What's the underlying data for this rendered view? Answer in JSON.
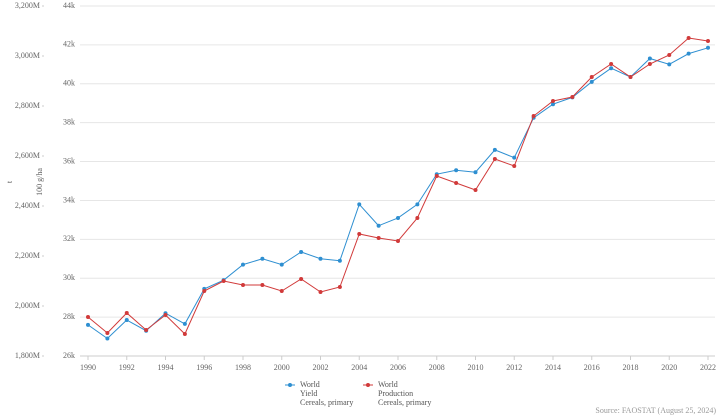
{
  "chart_data": {
    "type": "line",
    "x": [
      1990,
      1991,
      1992,
      1993,
      1994,
      1995,
      1996,
      1997,
      1998,
      1999,
      2000,
      2001,
      2002,
      2003,
      2004,
      2005,
      2006,
      2007,
      2008,
      2009,
      2010,
      2011,
      2012,
      2013,
      2014,
      2015,
      2016,
      2017,
      2018,
      2019,
      2020,
      2021,
      2022
    ],
    "xlim": [
      1990,
      2022
    ],
    "xticks": [
      1990,
      1992,
      1994,
      1996,
      1998,
      2000,
      2002,
      2004,
      2006,
      2008,
      2010,
      2012,
      2014,
      2016,
      2018,
      2020,
      2022
    ],
    "ylabel": "t",
    "y2label": "100 g/ha",
    "ylim": [
      1800000000,
      3200000000
    ],
    "yticks": [
      {
        "value": 1800000000,
        "label": "1,800M"
      },
      {
        "value": 2000000000,
        "label": "2,000M"
      },
      {
        "value": 2200000000,
        "label": "2,200M"
      },
      {
        "value": 2400000000,
        "label": "2,400M"
      },
      {
        "value": 2600000000,
        "label": "2,600M"
      },
      {
        "value": 2800000000,
        "label": "2,800M"
      },
      {
        "value": 3000000000,
        "label": "3,000M"
      },
      {
        "value": 3200000000,
        "label": "3,200M"
      }
    ],
    "y2lim": [
      26000,
      44000
    ],
    "y2ticks": [
      {
        "value": 26000,
        "label": "26k"
      },
      {
        "value": 28000,
        "label": "28k"
      },
      {
        "value": 30000,
        "label": "30k"
      },
      {
        "value": 32000,
        "label": "32k"
      },
      {
        "value": 34000,
        "label": "34k"
      },
      {
        "value": 36000,
        "label": "36k"
      },
      {
        "value": 38000,
        "label": "38k"
      },
      {
        "value": 40000,
        "label": "40k"
      },
      {
        "value": 42000,
        "label": "42k"
      },
      {
        "value": 44000,
        "label": "44k"
      }
    ],
    "grid": true,
    "series": [
      {
        "name": "World\nYield\nCereals, primary",
        "color": "#2e8fd1",
        "axis": "y2",
        "values": [
          27600,
          26900,
          27850,
          27300,
          28200,
          27650,
          29450,
          29900,
          30700,
          31000,
          30700,
          31350,
          31000,
          30900,
          33800,
          32700,
          33100,
          33800,
          35350,
          35550,
          35450,
          36600,
          36200,
          38250,
          38950,
          39300,
          40100,
          40800,
          40350,
          41300,
          41000,
          41550,
          41850
        ]
      },
      {
        "name": "World\nProduction\nCereals, primary",
        "color": "#d13a3a",
        "values": [
          1956000000,
          1892000000,
          1972000000,
          1904000000,
          1964000000,
          1888000000,
          2060000000,
          2100000000,
          2084000000,
          2084000000,
          2060000000,
          2108000000,
          2056000000,
          2076000000,
          2288000000,
          2272000000,
          2260000000,
          2352000000,
          2520000000,
          2492000000,
          2464000000,
          2588000000,
          2560000000,
          2760000000,
          2820000000,
          2836000000,
          2916000000,
          2968000000,
          2916000000,
          2968000000,
          3004000000,
          3072000000,
          3060000000
        ]
      }
    ],
    "source": "Source: FAOSTAT (August 25, 2024)"
  }
}
